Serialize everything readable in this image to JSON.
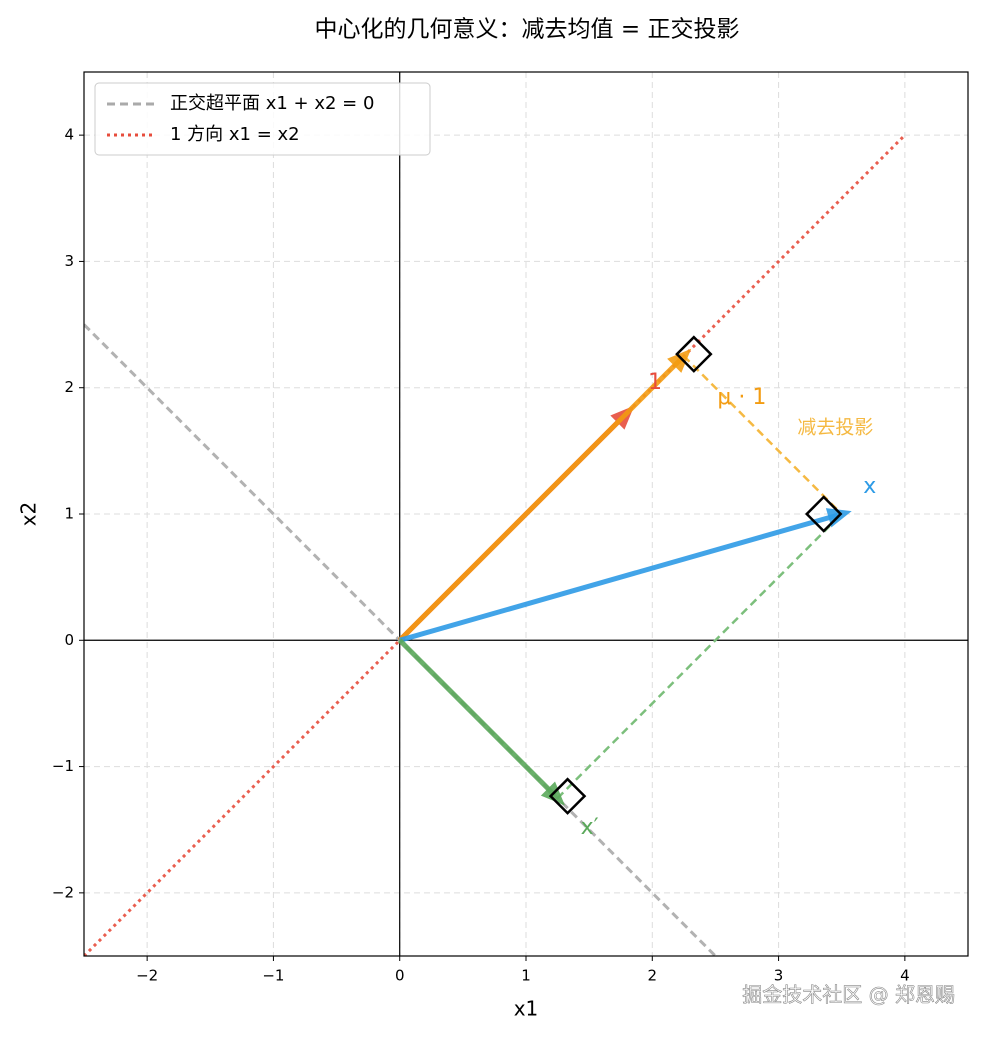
{
  "chart_data": {
    "type": "vector",
    "title": "中心化的几何意义：减去均值 = 正交投影",
    "xlabel": "x1",
    "ylabel": "x2",
    "xlim": [
      -2.5,
      4.5
    ],
    "ylim": [
      -2.5,
      4.5
    ],
    "xticks": [
      {
        "value": -2,
        "label": "−2"
      },
      {
        "value": -1,
        "label": "−1"
      },
      0,
      1,
      2,
      3,
      4
    ],
    "yticks": [
      {
        "value": -2,
        "label": "−2"
      },
      {
        "value": -1,
        "label": "−1"
      },
      0,
      1,
      2,
      3,
      4
    ],
    "grid": true,
    "legend_loc": "upper left",
    "lines": [
      {
        "name": "正交超平面 x1 + x2 = 0",
        "color": "#aaaaaa",
        "style": "dashed",
        "x": [
          -2.5,
          2.5
        ],
        "y": [
          2.5,
          -2.5
        ]
      },
      {
        "name": "1 方向 x1 = x2",
        "color": "#e74c3c",
        "style": "dotted",
        "x": [
          -2.5,
          4
        ],
        "y": [
          -2.5,
          4
        ]
      }
    ],
    "vectors": [
      {
        "label": "1",
        "color": "#e74c3c",
        "x": 1.8,
        "y": 1.8
      },
      {
        "label": "μ · 1",
        "color": "#f39c12",
        "x": 2.25,
        "y": 2.25
      },
      {
        "label": "x",
        "color": "#2e9be6",
        "x": 3.5,
        "y": 1
      },
      {
        "label": "x′",
        "color": "#5aa85a",
        "x": 1.25,
        "y": -1.25
      }
    ],
    "projections": [
      {
        "color": "#f5b942",
        "x": [
          2.25,
          3.5
        ],
        "y": [
          2.25,
          1
        ]
      },
      {
        "color": "#7cbf7c",
        "x": [
          1.25,
          3.5
        ],
        "y": [
          -1.25,
          1
        ]
      }
    ],
    "annotations": [
      {
        "text": "减去投影",
        "color": "#f5b942",
        "x": 3.45,
        "y": 1.68
      }
    ]
  },
  "watermark": "掘金技术社区 @ 郑恩赐"
}
